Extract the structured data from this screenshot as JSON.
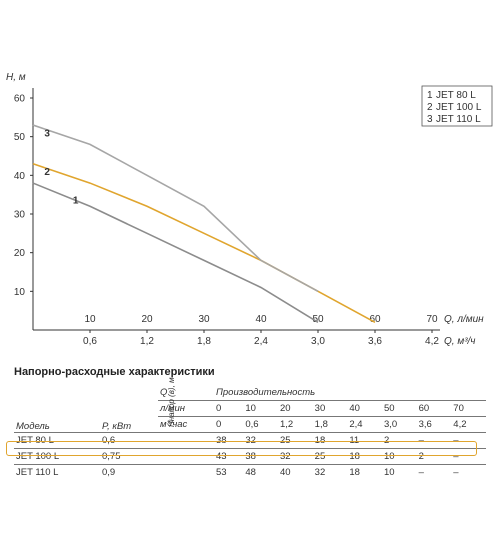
{
  "chart_data": {
    "type": "line",
    "y_label": "H, м",
    "x_label_primary": "Q, л/мин",
    "x_label_secondary": "Q, м³/ч",
    "x_ticks": [
      "10",
      "20",
      "30",
      "40",
      "50",
      "60",
      "70"
    ],
    "x2_ticks": [
      "0,6",
      "1,2",
      "1,8",
      "2,4",
      "3,0",
      "3,6",
      "4,2"
    ],
    "y_ticks": [
      "10",
      "20",
      "30",
      "40",
      "50",
      "60"
    ],
    "xlim": [
      0,
      70
    ],
    "ylim": [
      0,
      60
    ],
    "grid": false,
    "legend_position": "top-right",
    "series": [
      {
        "name": "JET 80 L",
        "label": "1",
        "color": "#8c8c8c",
        "x": [
          0,
          10,
          20,
          30,
          40,
          50
        ],
        "y": [
          38,
          32,
          25,
          18,
          11,
          2
        ]
      },
      {
        "name": "JET 100 L",
        "label": "2",
        "color": "#e0a52e",
        "x": [
          0,
          10,
          20,
          30,
          40,
          50,
          60
        ],
        "y": [
          43,
          38,
          32,
          25,
          18,
          10,
          2
        ]
      },
      {
        "name": "JET 110 L",
        "label": "3",
        "color": "#a6a6a6",
        "x": [
          0,
          10,
          20,
          30,
          40,
          50
        ],
        "y": [
          53,
          48,
          40,
          32,
          18,
          10
        ]
      }
    ]
  },
  "table": {
    "title": "Напорно-расходные характеристики",
    "q_header": "Q",
    "productivity_label": "Производительность",
    "unit_lmin": "л/мин",
    "unit_m3h": "м³/час",
    "col_model": "Модель",
    "col_power": "P, кВт",
    "head_unit": "Hнапор (в), м",
    "lmin_values": [
      "0",
      "10",
      "20",
      "30",
      "40",
      "50",
      "60",
      "70"
    ],
    "m3h_values": [
      "0",
      "0,6",
      "1,2",
      "1,8",
      "2,4",
      "3,0",
      "3,6",
      "4,2"
    ],
    "rows": [
      {
        "model": "JET 80 L",
        "power": "0,6",
        "values": [
          "38",
          "32",
          "25",
          "18",
          "11",
          "2",
          "–",
          "–"
        ]
      },
      {
        "model": "JET 100 L",
        "power": "0,75",
        "values": [
          "43",
          "38",
          "32",
          "25",
          "18",
          "10",
          "2",
          "–"
        ]
      },
      {
        "model": "JET 110 L",
        "power": "0,9",
        "values": [
          "53",
          "48",
          "40",
          "32",
          "18",
          "10",
          "–",
          "–"
        ]
      }
    ]
  }
}
